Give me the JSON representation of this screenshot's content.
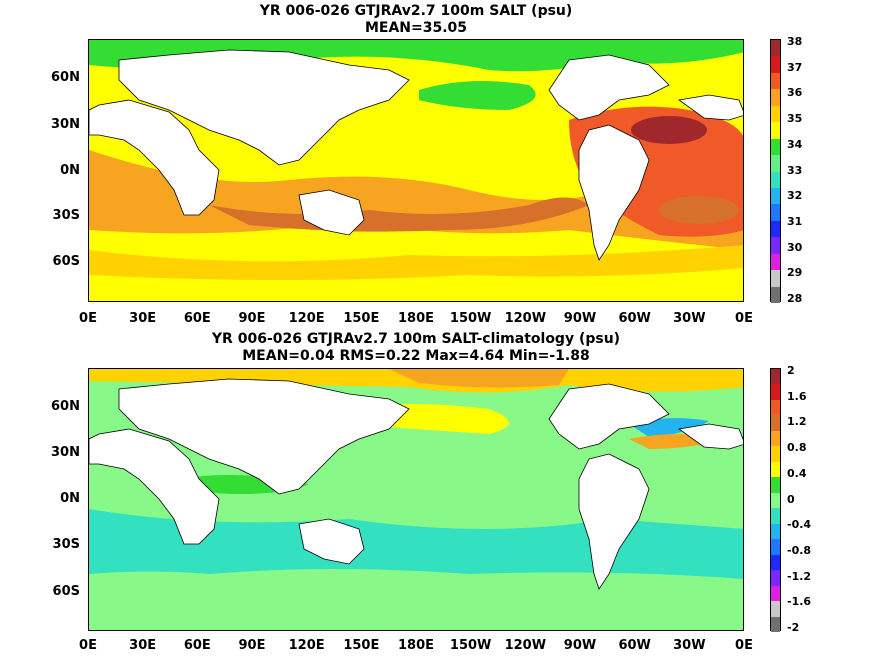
{
  "panels": [
    {
      "title1": "YR 006-026 GTJRAv2.7 100m SALT (psu)",
      "title2": "MEAN=35.05",
      "lat_labels": [
        "60N",
        "30N",
        "0N",
        "30S",
        "60S"
      ],
      "lon_labels": [
        "0E",
        "30E",
        "60E",
        "90E",
        "120E",
        "150E",
        "180E",
        "150W",
        "120W",
        "90W",
        "60W",
        "30W",
        "0E"
      ],
      "colorbar": {
        "labels": [
          "38",
          "37",
          "36",
          "35",
          "34",
          "33",
          "32",
          "31",
          "30",
          "29",
          "28"
        ],
        "colors": [
          "#a0282c",
          "#d7191c",
          "#f05a28",
          "#f7a520",
          "#ffd200",
          "#ffff00",
          "#33dd33",
          "#66ee88",
          "#33e0c0",
          "#22b4f0",
          "#1f78ff",
          "#1e28ff",
          "#7a28ff",
          "#e020e0",
          "#c8c8c8",
          "#707070"
        ]
      }
    },
    {
      "title1": "YR 006-026 GTJRAv2.7 100m SALT-climatology (psu)",
      "title2": "MEAN=0.04   RMS=0.22   Max=4.64   Min=-1.88",
      "lat_labels": [
        "60N",
        "30N",
        "0N",
        "30S",
        "60S"
      ],
      "lon_labels": [
        "0E",
        "30E",
        "60E",
        "90E",
        "120E",
        "150E",
        "180E",
        "150W",
        "120W",
        "90W",
        "60W",
        "30W",
        "0E"
      ],
      "colorbar": {
        "labels": [
          "2",
          "1.6",
          "1.2",
          "0.8",
          "0.4",
          "0",
          "-0.4",
          "-0.8",
          "-1.2",
          "-1.6",
          "-2"
        ],
        "colors": [
          "#a0282c",
          "#d7191c",
          "#f05a28",
          "#d7702a",
          "#f7a520",
          "#ffd200",
          "#ffff00",
          "#33dd33",
          "#88f888",
          "#33e0c0",
          "#22b4f0",
          "#1f78ff",
          "#1e28ff",
          "#7a28ff",
          "#e020e0",
          "#c8c8c8",
          "#707070"
        ]
      }
    }
  ],
  "field_colors": {
    "ocean_base_top": "#ffff00",
    "ocean_base_bottom": "#88f888",
    "land": "#ffffff"
  }
}
